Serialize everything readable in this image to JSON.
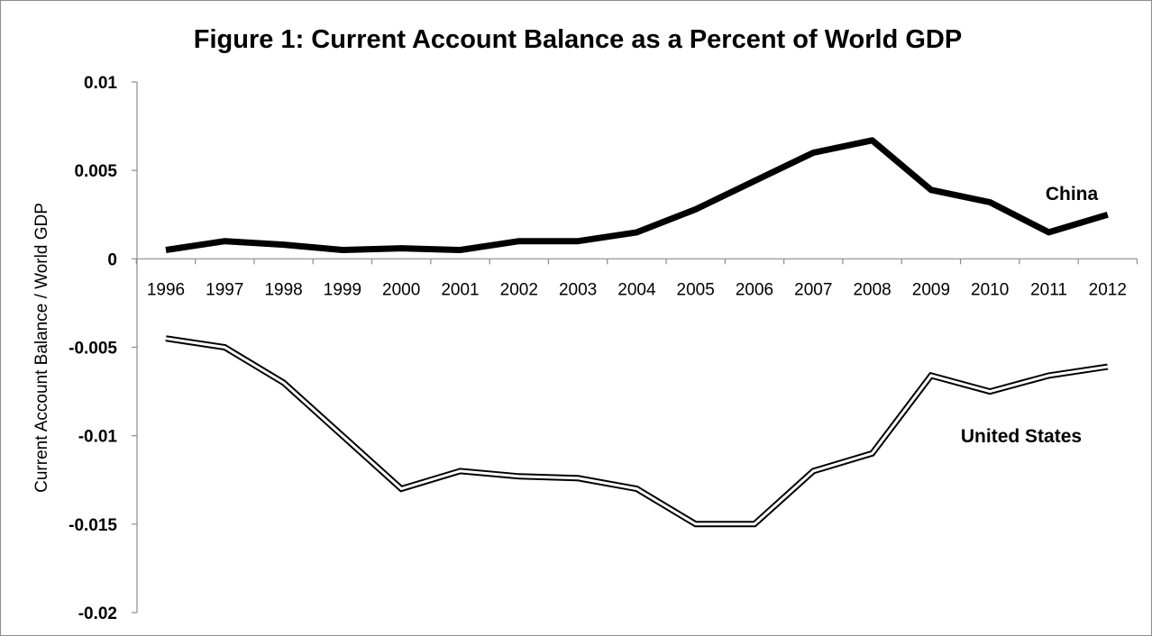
{
  "chart_data": {
    "type": "line",
    "title": "Figure 1: Current Account Balance as a Percent of World GDP",
    "xlabel": "",
    "ylabel": "Current Account  Balance / World GDP",
    "ylim": [
      -0.02,
      0.01
    ],
    "yticks": [
      "0.01",
      "0.005",
      "0",
      "-0.005",
      "-0.01",
      "-0.015",
      "-0.02"
    ],
    "ytick_values": [
      0.01,
      0.005,
      0,
      -0.005,
      -0.01,
      -0.015,
      -0.02
    ],
    "categories": [
      "1996",
      "1997",
      "1998",
      "1999",
      "2000",
      "2001",
      "2002",
      "2003",
      "2004",
      "2005",
      "2006",
      "2007",
      "2008",
      "2009",
      "2010",
      "2011",
      "2012"
    ],
    "grid": false,
    "legend": "none",
    "series": [
      {
        "name": "China",
        "style": "thick-solid",
        "color": "#000000",
        "values": [
          0.0005,
          0.001,
          0.0008,
          0.0005,
          0.0006,
          0.0005,
          0.001,
          0.001,
          0.0015,
          0.0028,
          0.0044,
          0.006,
          0.0067,
          0.0039,
          0.0032,
          0.0015,
          0.0025
        ]
      },
      {
        "name": "United States",
        "style": "double-line",
        "color": "#000000",
        "values": [
          -0.0045,
          -0.005,
          -0.007,
          -0.01,
          -0.013,
          -0.012,
          -0.0123,
          -0.0124,
          -0.013,
          -0.015,
          -0.015,
          -0.012,
          -0.011,
          -0.0066,
          -0.0075,
          -0.0066,
          -0.0061
        ]
      }
    ]
  }
}
